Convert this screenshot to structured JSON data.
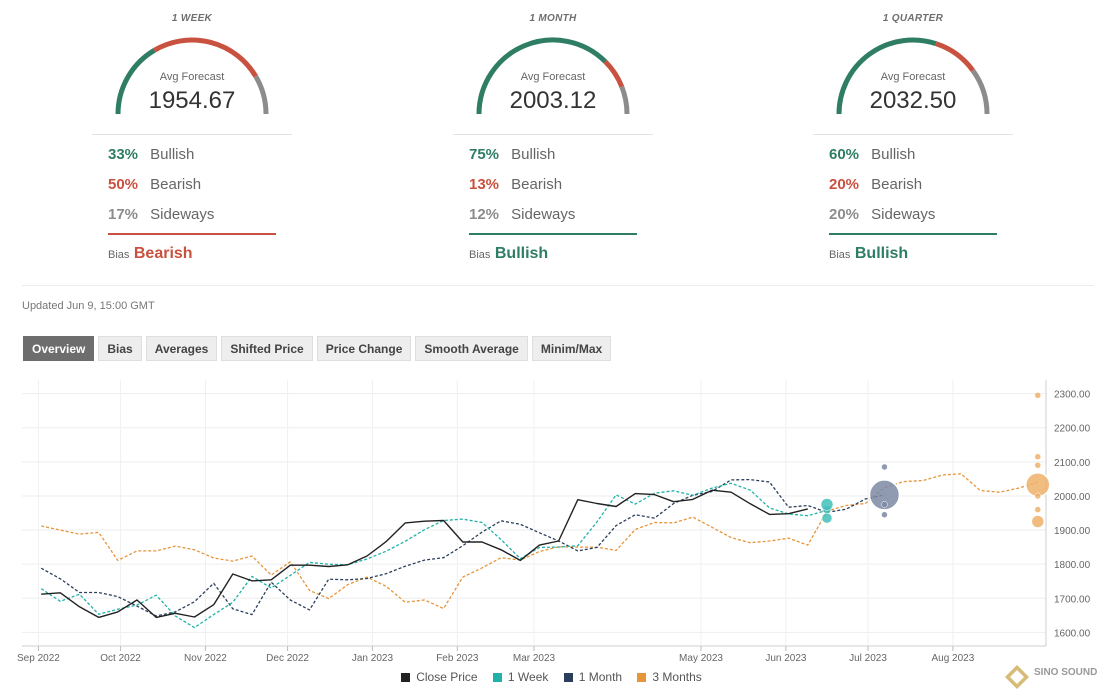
{
  "panels": [
    {
      "period": "1 WEEK",
      "avg_label": "Avg Forecast",
      "avg_value": "1954.67",
      "bullish": {
        "pct": "33%",
        "label": "Bullish"
      },
      "bearish": {
        "pct": "50%",
        "label": "Bearish"
      },
      "sideways": {
        "pct": "17%",
        "label": "Sideways"
      },
      "bias_label": "Bias",
      "bias_value": "Bearish",
      "gauge_shares": [
        0.33,
        0.5,
        0.17
      ],
      "bias_color": "#c9513f"
    },
    {
      "period": "1 MONTH",
      "avg_label": "Avg Forecast",
      "avg_value": "2003.12",
      "bullish": {
        "pct": "75%",
        "label": "Bullish"
      },
      "bearish": {
        "pct": "13%",
        "label": "Bearish"
      },
      "sideways": {
        "pct": "12%",
        "label": "Sideways"
      },
      "bias_label": "Bias",
      "bias_value": "Bullish",
      "gauge_shares": [
        0.75,
        0.13,
        0.12
      ],
      "bias_color": "#2e7d64"
    },
    {
      "period": "1 QUARTER",
      "avg_label": "Avg Forecast",
      "avg_value": "2032.50",
      "bullish": {
        "pct": "60%",
        "label": "Bullish"
      },
      "bearish": {
        "pct": "20%",
        "label": "Bearish"
      },
      "sideways": {
        "pct": "20%",
        "label": "Sideways"
      },
      "bias_label": "Bias",
      "bias_value": "Bullish",
      "gauge_shares": [
        0.6,
        0.2,
        0.2
      ],
      "bias_color": "#2e7d64"
    }
  ],
  "colors": {
    "bullish": "#2e7d64",
    "bearish": "#c9513f",
    "sideways": "#8c8c8c"
  },
  "updated": "Updated Jun 9, 15:00 GMT",
  "tabs": [
    "Overview",
    "Bias",
    "Averages",
    "Shifted Price",
    "Price Change",
    "Smooth Average",
    "Minim/Max"
  ],
  "active_tab": "Overview",
  "watermark": "SINO SOUND",
  "chart_data": {
    "type": "line",
    "x_ticks": [
      {
        "label": "Sep 2022",
        "date": "2022-09-01"
      },
      {
        "label": "Oct 2022",
        "date": "2022-10-01"
      },
      {
        "label": "Nov 2022",
        "date": "2022-11-01"
      },
      {
        "label": "Dec 2022",
        "date": "2022-12-01"
      },
      {
        "label": "Jan 2023",
        "date": "2023-01-01"
      },
      {
        "label": "Feb 2023",
        "date": "2023-02-01"
      },
      {
        "label": "Mar 2023",
        "date": "2023-03-01"
      },
      {
        "label": "May 2023",
        "date": "2023-05-01"
      },
      {
        "label": "Jun 2023",
        "date": "2023-06-01"
      },
      {
        "label": "Jul 2023",
        "date": "2023-07-01"
      },
      {
        "label": "Aug 2023",
        "date": "2023-08-01"
      }
    ],
    "xlim": [
      "2022-08-26",
      "2023-09-04"
    ],
    "ylim": [
      1560,
      2340
    ],
    "y_ticks": [
      1600,
      1700,
      1800,
      1900,
      2000,
      2100,
      2200,
      2300
    ],
    "y_tick_labels": [
      "1600.00",
      "1700.00",
      "1800.00",
      "1900.00",
      "2000.00",
      "2100.00",
      "2200.00",
      "2300.00"
    ],
    "grid": true,
    "legend_position": "bottom",
    "series": [
      {
        "name": "Close Price",
        "color": "#222222",
        "dashed": false,
        "points": [
          [
            "2022-09-02",
            1712
          ],
          [
            "2022-09-09",
            1716
          ],
          [
            "2022-09-16",
            1675
          ],
          [
            "2022-09-23",
            1644
          ],
          [
            "2022-09-30",
            1660
          ],
          [
            "2022-10-07",
            1695
          ],
          [
            "2022-10-14",
            1644
          ],
          [
            "2022-10-21",
            1656
          ],
          [
            "2022-10-28",
            1645
          ],
          [
            "2022-11-04",
            1681
          ],
          [
            "2022-11-11",
            1771
          ],
          [
            "2022-11-18",
            1751
          ],
          [
            "2022-11-25",
            1754
          ],
          [
            "2022-12-02",
            1797
          ],
          [
            "2022-12-09",
            1797
          ],
          [
            "2022-12-16",
            1793
          ],
          [
            "2022-12-23",
            1798
          ],
          [
            "2022-12-30",
            1824
          ],
          [
            "2023-01-06",
            1866
          ],
          [
            "2023-01-13",
            1921
          ],
          [
            "2023-01-20",
            1926
          ],
          [
            "2023-01-27",
            1928
          ],
          [
            "2023-02-03",
            1865
          ],
          [
            "2023-02-10",
            1865
          ],
          [
            "2023-02-17",
            1842
          ],
          [
            "2023-02-24",
            1811
          ],
          [
            "2023-03-03",
            1856
          ],
          [
            "2023-03-10",
            1868
          ],
          [
            "2023-03-17",
            1989
          ],
          [
            "2023-03-24",
            1978
          ],
          [
            "2023-03-31",
            1969
          ],
          [
            "2023-04-07",
            2007
          ],
          [
            "2023-04-14",
            2004
          ],
          [
            "2023-04-21",
            1983
          ],
          [
            "2023-04-28",
            1990
          ],
          [
            "2023-05-05",
            2017
          ],
          [
            "2023-05-12",
            2011
          ],
          [
            "2023-05-19",
            1977
          ],
          [
            "2023-05-26",
            1946
          ],
          [
            "2023-06-02",
            1948
          ],
          [
            "2023-06-09",
            1962
          ]
        ]
      },
      {
        "name": "1 Week",
        "color": "#20b2aa",
        "dashed": true,
        "points": [
          [
            "2022-09-02",
            1728
          ],
          [
            "2022-09-09",
            1691
          ],
          [
            "2022-09-16",
            1712
          ],
          [
            "2022-09-23",
            1653
          ],
          [
            "2022-09-30",
            1668
          ],
          [
            "2022-10-07",
            1680
          ],
          [
            "2022-10-14",
            1709
          ],
          [
            "2022-10-21",
            1648
          ],
          [
            "2022-10-28",
            1614
          ],
          [
            "2022-11-04",
            1652
          ],
          [
            "2022-11-11",
            1688
          ],
          [
            "2022-11-18",
            1764
          ],
          [
            "2022-11-25",
            1730
          ],
          [
            "2022-12-02",
            1767
          ],
          [
            "2022-12-09",
            1805
          ],
          [
            "2022-12-16",
            1800
          ],
          [
            "2022-12-23",
            1798
          ],
          [
            "2022-12-30",
            1815
          ],
          [
            "2023-01-06",
            1838
          ],
          [
            "2023-01-13",
            1867
          ],
          [
            "2023-01-20",
            1901
          ],
          [
            "2023-01-27",
            1928
          ],
          [
            "2023-02-03",
            1932
          ],
          [
            "2023-02-10",
            1922
          ],
          [
            "2023-02-17",
            1872
          ],
          [
            "2023-02-24",
            1816
          ],
          [
            "2023-03-03",
            1849
          ],
          [
            "2023-03-10",
            1850
          ],
          [
            "2023-03-17",
            1854
          ],
          [
            "2023-03-24",
            1924
          ],
          [
            "2023-03-31",
            2003
          ],
          [
            "2023-04-07",
            1976
          ],
          [
            "2023-04-14",
            2008
          ],
          [
            "2023-04-21",
            2015
          ],
          [
            "2023-04-28",
            2002
          ],
          [
            "2023-05-05",
            2023
          ],
          [
            "2023-05-12",
            2037
          ],
          [
            "2023-05-19",
            2017
          ],
          [
            "2023-05-26",
            1965
          ],
          [
            "2023-06-02",
            1947
          ],
          [
            "2023-06-09",
            1942
          ],
          [
            "2023-06-16",
            1958
          ]
        ]
      },
      {
        "name": "1 Month",
        "color": "#2b3f5c",
        "dashed": true,
        "points": [
          [
            "2022-09-02",
            1788
          ],
          [
            "2022-09-09",
            1757
          ],
          [
            "2022-09-16",
            1717
          ],
          [
            "2022-09-23",
            1717
          ],
          [
            "2022-09-30",
            1705
          ],
          [
            "2022-10-07",
            1677
          ],
          [
            "2022-10-14",
            1648
          ],
          [
            "2022-10-21",
            1660
          ],
          [
            "2022-10-28",
            1690
          ],
          [
            "2022-11-04",
            1744
          ],
          [
            "2022-11-11",
            1669
          ],
          [
            "2022-11-18",
            1652
          ],
          [
            "2022-11-25",
            1747
          ],
          [
            "2022-12-02",
            1695
          ],
          [
            "2022-12-09",
            1666
          ],
          [
            "2022-12-16",
            1756
          ],
          [
            "2022-12-23",
            1754
          ],
          [
            "2022-12-30",
            1758
          ],
          [
            "2023-01-06",
            1772
          ],
          [
            "2023-01-13",
            1794
          ],
          [
            "2023-01-20",
            1812
          ],
          [
            "2023-01-27",
            1819
          ],
          [
            "2023-02-03",
            1854
          ],
          [
            "2023-02-10",
            1894
          ],
          [
            "2023-02-17",
            1927
          ],
          [
            "2023-02-24",
            1917
          ],
          [
            "2023-03-03",
            1892
          ],
          [
            "2023-03-10",
            1868
          ],
          [
            "2023-03-17",
            1839
          ],
          [
            "2023-03-24",
            1849
          ],
          [
            "2023-03-31",
            1913
          ],
          [
            "2023-04-07",
            1945
          ],
          [
            "2023-04-14",
            1935
          ],
          [
            "2023-04-21",
            1978
          ],
          [
            "2023-04-28",
            2002
          ],
          [
            "2023-05-05",
            2013
          ],
          [
            "2023-05-12",
            2047
          ],
          [
            "2023-05-19",
            2048
          ],
          [
            "2023-05-26",
            2041
          ],
          [
            "2023-06-02",
            1967
          ],
          [
            "2023-06-09",
            1972
          ],
          [
            "2023-06-16",
            1952
          ],
          [
            "2023-06-23",
            1961
          ],
          [
            "2023-06-30",
            1991
          ],
          [
            "2023-07-07",
            2003
          ]
        ]
      },
      {
        "name": "3 Months",
        "color": "#e8953a",
        "dashed": true,
        "points": [
          [
            "2022-09-02",
            1912
          ],
          [
            "2022-09-09",
            1900
          ],
          [
            "2022-09-16",
            1888
          ],
          [
            "2022-09-23",
            1893
          ],
          [
            "2022-09-30",
            1811
          ],
          [
            "2022-10-07",
            1839
          ],
          [
            "2022-10-14",
            1839
          ],
          [
            "2022-10-21",
            1853
          ],
          [
            "2022-10-28",
            1842
          ],
          [
            "2022-11-04",
            1818
          ],
          [
            "2022-11-11",
            1809
          ],
          [
            "2022-11-18",
            1824
          ],
          [
            "2022-11-25",
            1768
          ],
          [
            "2022-12-02",
            1807
          ],
          [
            "2022-12-09",
            1723
          ],
          [
            "2022-12-16",
            1699
          ],
          [
            "2022-12-23",
            1740
          ],
          [
            "2022-12-30",
            1762
          ],
          [
            "2023-01-06",
            1735
          ],
          [
            "2023-01-13",
            1688
          ],
          [
            "2023-01-20",
            1695
          ],
          [
            "2023-01-27",
            1670
          ],
          [
            "2023-02-03",
            1762
          ],
          [
            "2023-02-10",
            1789
          ],
          [
            "2023-02-17",
            1819
          ],
          [
            "2023-02-24",
            1812
          ],
          [
            "2023-03-03",
            1837
          ],
          [
            "2023-03-10",
            1851
          ],
          [
            "2023-03-17",
            1850
          ],
          [
            "2023-03-24",
            1850
          ],
          [
            "2023-03-31",
            1840
          ],
          [
            "2023-04-07",
            1902
          ],
          [
            "2023-04-14",
            1922
          ],
          [
            "2023-04-21",
            1921
          ],
          [
            "2023-04-28",
            1938
          ],
          [
            "2023-05-05",
            1908
          ],
          [
            "2023-05-12",
            1878
          ],
          [
            "2023-05-19",
            1863
          ],
          [
            "2023-05-26",
            1868
          ],
          [
            "2023-06-02",
            1876
          ],
          [
            "2023-06-09",
            1856
          ],
          [
            "2023-06-16",
            1956
          ],
          [
            "2023-06-23",
            1972
          ],
          [
            "2023-06-30",
            1978
          ],
          [
            "2023-07-07",
            2024
          ],
          [
            "2023-07-14",
            2042
          ],
          [
            "2023-07-21",
            2045
          ],
          [
            "2023-07-28",
            2061
          ],
          [
            "2023-08-04",
            2065
          ],
          [
            "2023-08-11",
            2016
          ],
          [
            "2023-08-18",
            2011
          ],
          [
            "2023-08-25",
            2023
          ],
          [
            "2023-09-01",
            2040
          ]
        ]
      }
    ],
    "forecast_points": [
      {
        "series": "1 Week",
        "date": "2023-06-16",
        "value": 1935,
        "size": 5
      },
      {
        "series": "1 Week",
        "date": "2023-06-16",
        "value": 1960,
        "size": 4
      },
      {
        "series": "1 Week",
        "date": "2023-06-16",
        "value": 1975,
        "size": 6
      },
      {
        "series": "1 Month",
        "date": "2023-07-07",
        "value": 2003,
        "size": 15
      },
      {
        "series": "1 Month",
        "date": "2023-07-07",
        "value": 2085,
        "size": 3
      },
      {
        "series": "1 Month",
        "date": "2023-07-07",
        "value": 1975,
        "size": 3
      },
      {
        "series": "1 Month",
        "date": "2023-07-07",
        "value": 1945,
        "size": 3
      },
      {
        "series": "3 Months",
        "date": "2023-09-01",
        "value": 2295,
        "size": 3
      },
      {
        "series": "3 Months",
        "date": "2023-09-01",
        "value": 2115,
        "size": 3
      },
      {
        "series": "3 Months",
        "date": "2023-09-01",
        "value": 2090,
        "size": 3
      },
      {
        "series": "3 Months",
        "date": "2023-09-01",
        "value": 2033,
        "size": 12
      },
      {
        "series": "3 Months",
        "date": "2023-09-01",
        "value": 2000,
        "size": 3
      },
      {
        "series": "3 Months",
        "date": "2023-09-01",
        "value": 1960,
        "size": 3
      },
      {
        "series": "3 Months",
        "date": "2023-09-01",
        "value": 1925,
        "size": 6
      }
    ]
  }
}
